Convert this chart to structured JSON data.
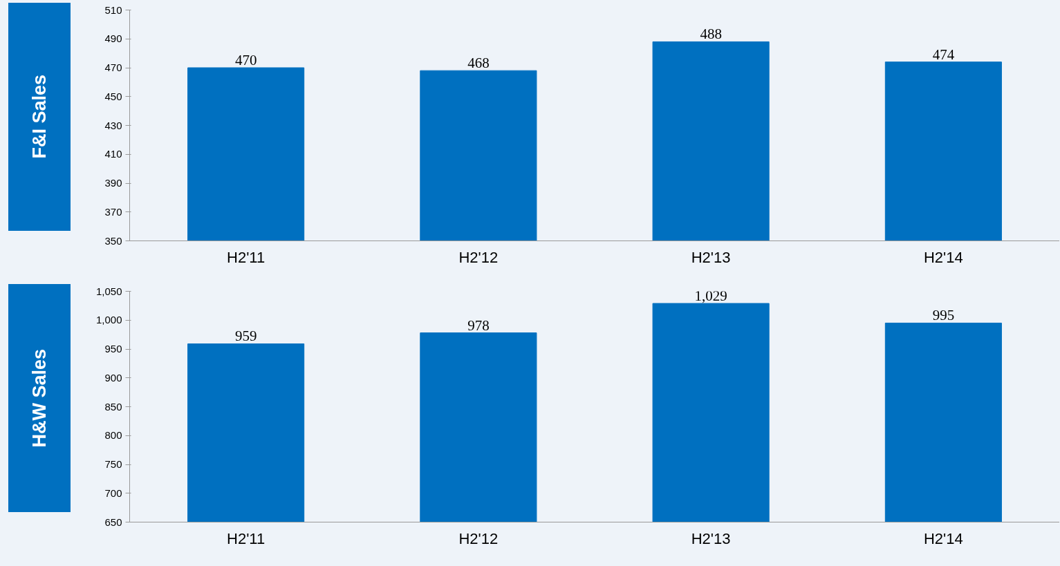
{
  "chart_data": [
    {
      "type": "bar",
      "ylabel": "F&I Sales",
      "categories": [
        "H2'11",
        "H2'12",
        "H2'13",
        "H2'14"
      ],
      "values": [
        470,
        468,
        488,
        474
      ],
      "color": "#0070c0",
      "ylim": [
        350,
        510
      ],
      "yticks": [
        350,
        370,
        390,
        410,
        430,
        450,
        470,
        490,
        510
      ],
      "data_labels": true,
      "grid": false
    },
    {
      "type": "bar",
      "ylabel": "H&W Sales",
      "categories": [
        "H2'11",
        "H2'12",
        "H2'13",
        "H2'14"
      ],
      "values": [
        959,
        978,
        1029,
        995
      ],
      "value_labels": [
        "959",
        "978",
        "1,029",
        "995"
      ],
      "color": "#0070c0",
      "ylim": [
        650,
        1050
      ],
      "yticks": [
        650,
        700,
        750,
        800,
        850,
        900,
        950,
        {
          "value": 1000,
          "label": "1,000"
        },
        {
          "value": 1050,
          "label": "1,050"
        }
      ],
      "grid": false
    }
  ]
}
